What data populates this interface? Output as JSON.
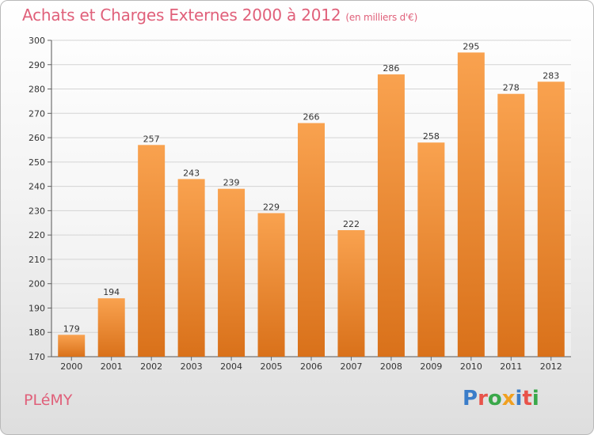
{
  "title": "Achats et Charges Externes 2000 à 2012",
  "subtitle": "(en milliers d'€)",
  "commune": "PLéMY",
  "brand": {
    "letters": [
      "P",
      "r",
      "o",
      "x",
      "i",
      "t",
      "i"
    ],
    "colors": [
      "#3a7dc9",
      "#e8534a",
      "#3aa84a",
      "#f0a020",
      "#3a7dc9",
      "#e8534a",
      "#3aa84a"
    ]
  },
  "colors": {
    "bar_top": "#f9a24f",
    "bar_bottom": "#d9711a",
    "title": "#e0607a"
  },
  "chart_data": {
    "type": "bar",
    "categories": [
      "2000",
      "2001",
      "2002",
      "2003",
      "2004",
      "2005",
      "2006",
      "2007",
      "2008",
      "2009",
      "2010",
      "2011",
      "2012"
    ],
    "values": [
      179,
      194,
      257,
      243,
      239,
      229,
      266,
      222,
      286,
      258,
      295,
      278,
      283
    ],
    "ylim": [
      170,
      300
    ],
    "yticks": [
      170,
      180,
      190,
      200,
      210,
      220,
      230,
      240,
      250,
      260,
      270,
      280,
      290,
      300
    ],
    "grid": true,
    "data_labels": true
  }
}
